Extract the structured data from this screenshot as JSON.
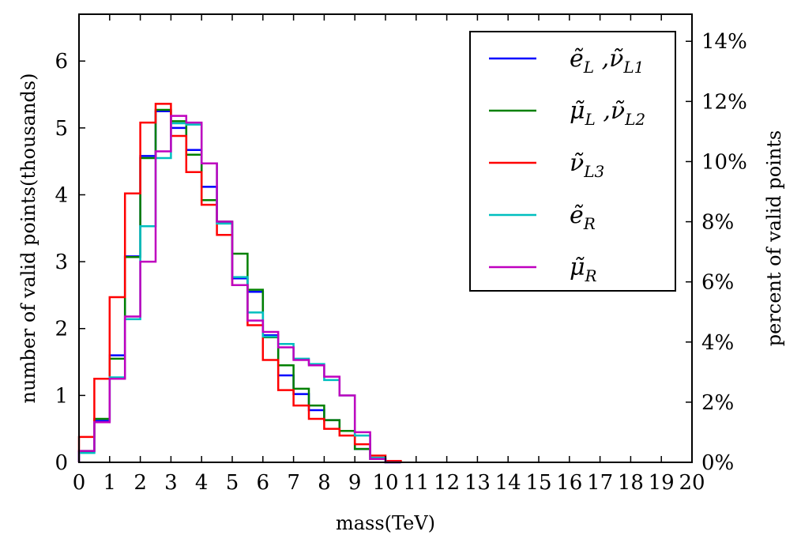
{
  "chart_data": {
    "type": "histogram-step",
    "xlabel": "mass(TeV)",
    "ylabel": "number of valid points(thousands)",
    "ylabel_right": "percent of valid points",
    "xlim": [
      0,
      20
    ],
    "ylim": [
      0,
      6.7
    ],
    "y2lim": [
      0,
      14.9
    ],
    "bin_width": 0.5,
    "x_ticks": [
      "0",
      "1",
      "2",
      "3",
      "4",
      "5",
      "6",
      "7",
      "8",
      "9",
      "10",
      "11",
      "12",
      "13",
      "14",
      "15",
      "16",
      "17",
      "18",
      "19",
      "20"
    ],
    "y_ticks": [
      "0",
      "1",
      "2",
      "3",
      "4",
      "5",
      "6"
    ],
    "y2_ticks": [
      "0%",
      "2%",
      "4%",
      "6%",
      "8%",
      "10%",
      "12%",
      "14%"
    ],
    "legend_position": "top-right",
    "series": [
      {
        "name_main": "ẽ",
        "name_sub": "L",
        "name_sep": " ,",
        "name_main2": "ν̃",
        "name_sub2": "L1",
        "color": "#0000ff",
        "values": [
          0.15,
          0.62,
          1.6,
          3.08,
          4.58,
          5.25,
          5.0,
          4.67,
          4.12,
          3.58,
          2.75,
          2.55,
          1.9,
          1.3,
          1.02,
          0.78,
          0.63,
          0.47,
          0.2,
          0.05,
          0.0
        ]
      },
      {
        "name_main": "μ̃",
        "name_sub": "L",
        "name_sep": " ,",
        "name_main2": "ν̃",
        "name_sub2": "L2",
        "color": "#008000",
        "values": [
          0.17,
          0.65,
          1.55,
          3.07,
          4.55,
          5.27,
          5.1,
          4.6,
          3.92,
          3.6,
          3.12,
          2.58,
          1.87,
          1.45,
          1.1,
          0.85,
          0.63,
          0.47,
          0.2,
          0.05,
          0.01
        ]
      },
      {
        "name_main": "ν̃",
        "name_sub": "L3",
        "name_sep": "",
        "name_main2": "",
        "name_sub2": "",
        "color": "#ff0000",
        "values": [
          0.38,
          1.25,
          2.47,
          4.02,
          5.08,
          5.36,
          4.88,
          4.34,
          3.85,
          3.4,
          2.65,
          2.05,
          1.53,
          1.08,
          0.85,
          0.65,
          0.5,
          0.4,
          0.27,
          0.1,
          0.02
        ]
      },
      {
        "name_main": "ẽ",
        "name_sub": "R",
        "name_sep": "",
        "name_main2": "",
        "name_sub2": "",
        "color": "#00bfbf",
        "values": [
          0.14,
          0.6,
          1.27,
          2.14,
          3.53,
          4.55,
          5.07,
          5.05,
          4.47,
          3.57,
          2.77,
          2.24,
          1.88,
          1.77,
          1.55,
          1.47,
          1.23,
          1.0,
          0.4,
          0.07,
          0.0
        ]
      },
      {
        "name_main": "μ̃",
        "name_sub": "R",
        "name_sep": "",
        "name_main2": "",
        "name_sub2": "",
        "color": "#bf00bf",
        "values": [
          0.17,
          0.6,
          1.25,
          2.18,
          3.0,
          4.65,
          5.18,
          5.08,
          4.47,
          3.6,
          2.65,
          2.12,
          1.95,
          1.72,
          1.53,
          1.45,
          1.28,
          1.0,
          0.45,
          0.05,
          0.0
        ]
      }
    ]
  }
}
